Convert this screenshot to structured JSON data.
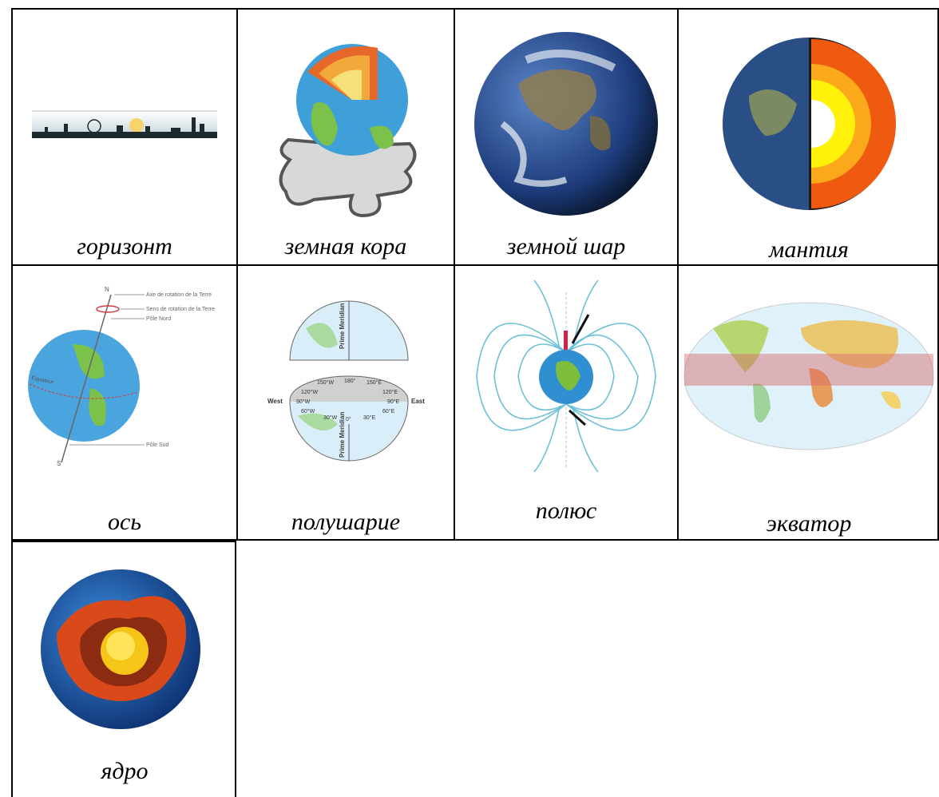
{
  "cards": [
    {
      "word": "горизонт",
      "icon": "horizon-skyline-icon"
    },
    {
      "word": "земная кора",
      "icon": "earth-crust-puzzle-icon"
    },
    {
      "word": "земной шар",
      "icon": "globe-icon"
    },
    {
      "word": "мантия",
      "icon": "earth-mantle-cutaway-icon"
    },
    {
      "word": "ось",
      "icon": "earth-axis-diagram-icon",
      "labels": [
        "N",
        "Axe de rotation de la Terre",
        "Sens de rotation de la Terre",
        "Pôle Nord",
        "Équateur",
        "Pôle Sud",
        "S"
      ]
    },
    {
      "word": "полушарие",
      "icon": "hemispheres-diagram-icon",
      "labels": [
        "Prime Meridian",
        "180°",
        "150°W",
        "150°E",
        "120°W",
        "120°E",
        "90°W",
        "90°E",
        "60°W",
        "60°E",
        "30°W",
        "0°",
        "30°E",
        "West",
        "East",
        "Prime Meridian"
      ]
    },
    {
      "word": "полюс",
      "icon": "magnetic-field-poles-icon"
    },
    {
      "word": "экватор",
      "icon": "equator-world-map-icon"
    },
    {
      "word": "ядро",
      "icon": "earth-core-cutaway-icon"
    }
  ]
}
